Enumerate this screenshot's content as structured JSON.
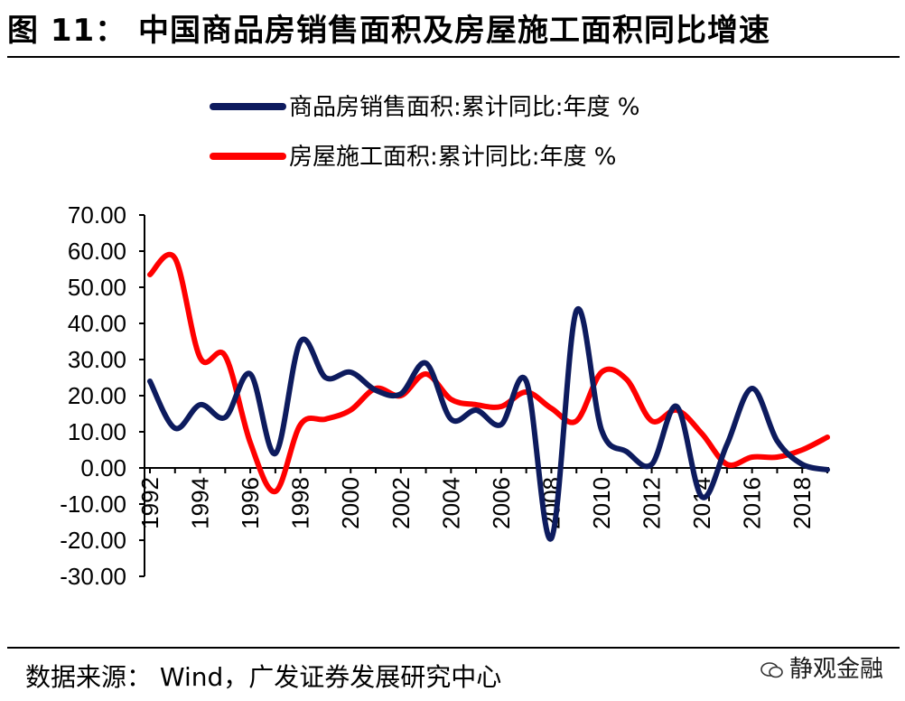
{
  "header": {
    "title": "图 11：  中国商品房销售面积及房屋施工面积同比增速"
  },
  "footer": {
    "source": "数据来源：  Wind，广发证券发展研究中心",
    "watermark": "静观金融"
  },
  "chart_data": {
    "type": "line",
    "title": "",
    "xlabel": "",
    "ylabel": "",
    "ylim": [
      -30,
      70
    ],
    "yticks": [
      70,
      60,
      50,
      40,
      30,
      20,
      10,
      0,
      -10,
      -20,
      -30
    ],
    "ytick_labels": [
      "70.00",
      "60.00",
      "50.00",
      "40.00",
      "30.00",
      "20.00",
      "10.00",
      "0.00",
      "-10.00",
      "-20.00",
      "-30.00"
    ],
    "xlim": [
      1992,
      2019
    ],
    "xtick_labels": [
      "1992",
      "1994",
      "1996",
      "1998",
      "2000",
      "2002",
      "2004",
      "2006",
      "2008",
      "2010",
      "2012",
      "2014",
      "2016",
      "2018"
    ],
    "legend_position": "top",
    "series": [
      {
        "name": "商品房销售面积:累计同比:年度 %",
        "color": "#0d1b5e",
        "x": [
          1992,
          1993,
          1994,
          1995,
          1996,
          1997,
          1998,
          1999,
          2000,
          2001,
          2002,
          2003,
          2004,
          2005,
          2006,
          2007,
          2008,
          2009,
          2010,
          2011,
          2012,
          2013,
          2014,
          2015,
          2016,
          2017,
          2018,
          2019
        ],
        "values": [
          24.0,
          11.0,
          17.5,
          14.0,
          26.0,
          4.0,
          35.0,
          25.0,
          26.5,
          21.5,
          20.5,
          29.0,
          13.5,
          16.0,
          12.0,
          24.0,
          -19.5,
          43.5,
          10.5,
          4.5,
          1.0,
          17.0,
          -8.0,
          6.5,
          22.0,
          7.5,
          1.0,
          -0.5
        ]
      },
      {
        "name": "房屋施工面积:累计同比:年度 %",
        "color": "#ff0000",
        "x": [
          1992,
          1993,
          1994,
          1995,
          1996,
          1997,
          1998,
          1999,
          2000,
          2001,
          2002,
          2003,
          2004,
          2005,
          2006,
          2007,
          2008,
          2009,
          2010,
          2011,
          2012,
          2013,
          2014,
          2015,
          2016,
          2017,
          2018,
          2019
        ],
        "values": [
          53.5,
          58.0,
          30.5,
          31.0,
          7.0,
          -6.5,
          12.0,
          13.5,
          16.0,
          22.0,
          20.0,
          26.0,
          19.0,
          17.5,
          17.0,
          21.0,
          16.5,
          13.0,
          26.5,
          24.5,
          13.0,
          16.0,
          9.5,
          1.0,
          3.0,
          3.0,
          5.0,
          8.5
        ]
      }
    ]
  }
}
